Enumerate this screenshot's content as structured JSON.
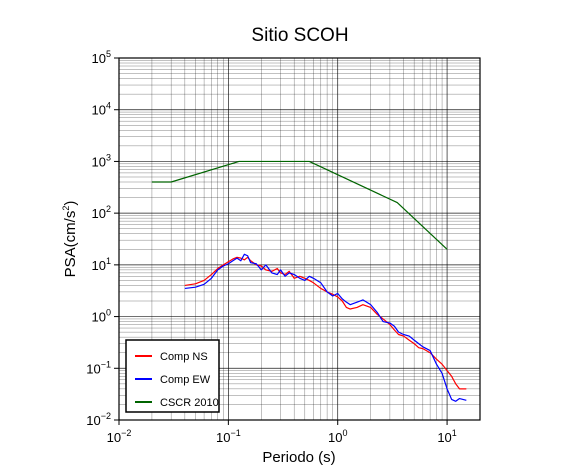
{
  "chart_data": {
    "type": "line",
    "title": "Sitio SCOH",
    "xlabel": "Periodo (s)",
    "ylabel_base": "PSA(cm/s",
    "ylabel_sup": "2",
    "ylabel_end": ")",
    "xscale": "log",
    "yscale": "log",
    "xlim": [
      0.01,
      20
    ],
    "ylim": [
      0.01,
      100000
    ],
    "x_ticks": [
      {
        "base": "10",
        "exp": "−2",
        "value": 0.01
      },
      {
        "base": "10",
        "exp": "−1",
        "value": 0.1
      },
      {
        "base": "10",
        "exp": "0",
        "value": 1
      },
      {
        "base": "10",
        "exp": "1",
        "value": 10
      }
    ],
    "y_ticks": [
      {
        "base": "10",
        "exp": "−2",
        "value": 0.01
      },
      {
        "base": "10",
        "exp": "−1",
        "value": 0.1
      },
      {
        "base": "10",
        "exp": "0",
        "value": 1
      },
      {
        "base": "10",
        "exp": "1",
        "value": 10
      },
      {
        "base": "10",
        "exp": "2",
        "value": 100
      },
      {
        "base": "10",
        "exp": "3",
        "value": 1000
      },
      {
        "base": "10",
        "exp": "4",
        "value": 10000
      },
      {
        "base": "10",
        "exp": "5",
        "value": 100000
      }
    ],
    "grid": true,
    "legend_position": "bottom-left",
    "series": [
      {
        "name": "Comp NS",
        "color": "#ff0000",
        "points": [
          [
            0.04,
            4.0
          ],
          [
            0.05,
            4.3
          ],
          [
            0.06,
            5.0
          ],
          [
            0.07,
            6.5
          ],
          [
            0.08,
            8.5
          ],
          [
            0.09,
            10.0
          ],
          [
            0.1,
            11.5
          ],
          [
            0.11,
            13.0
          ],
          [
            0.12,
            14.0
          ],
          [
            0.13,
            13.5
          ],
          [
            0.14,
            12.5
          ],
          [
            0.15,
            14.0
          ],
          [
            0.16,
            12.0
          ],
          [
            0.18,
            10.0
          ],
          [
            0.2,
            9.5
          ],
          [
            0.22,
            8.0
          ],
          [
            0.25,
            7.5
          ],
          [
            0.28,
            8.5
          ],
          [
            0.3,
            7.0
          ],
          [
            0.33,
            6.5
          ],
          [
            0.36,
            7.5
          ],
          [
            0.4,
            5.5
          ],
          [
            0.45,
            6.0
          ],
          [
            0.5,
            5.5
          ],
          [
            0.55,
            5.0
          ],
          [
            0.6,
            4.5
          ],
          [
            0.7,
            3.5
          ],
          [
            0.8,
            3.0
          ],
          [
            0.9,
            2.7
          ],
          [
            1.0,
            2.4
          ],
          [
            1.1,
            2.0
          ],
          [
            1.2,
            1.5
          ],
          [
            1.3,
            1.4
          ],
          [
            1.5,
            1.5
          ],
          [
            1.7,
            1.7
          ],
          [
            2.0,
            1.5
          ],
          [
            2.3,
            1.1
          ],
          [
            2.6,
            0.9
          ],
          [
            3.0,
            0.7
          ],
          [
            3.3,
            0.55
          ],
          [
            3.6,
            0.45
          ],
          [
            4.0,
            0.42
          ],
          [
            4.5,
            0.35
          ],
          [
            5.0,
            0.3
          ],
          [
            5.5,
            0.25
          ],
          [
            6.0,
            0.24
          ],
          [
            7.0,
            0.2
          ],
          [
            8.0,
            0.15
          ],
          [
            9.0,
            0.12
          ],
          [
            10.0,
            0.09
          ],
          [
            11.0,
            0.07
          ],
          [
            12.0,
            0.05
          ],
          [
            13.0,
            0.04
          ],
          [
            15.0,
            0.04
          ]
        ]
      },
      {
        "name": "Comp EW",
        "color": "#0000ff",
        "points": [
          [
            0.04,
            3.5
          ],
          [
            0.05,
            3.7
          ],
          [
            0.06,
            4.2
          ],
          [
            0.07,
            5.5
          ],
          [
            0.08,
            8.0
          ],
          [
            0.09,
            9.5
          ],
          [
            0.1,
            10.5
          ],
          [
            0.11,
            12.0
          ],
          [
            0.12,
            13.5
          ],
          [
            0.13,
            12.0
          ],
          [
            0.14,
            16.0
          ],
          [
            0.15,
            15.0
          ],
          [
            0.16,
            11.0
          ],
          [
            0.18,
            10.5
          ],
          [
            0.2,
            8.0
          ],
          [
            0.22,
            10.0
          ],
          [
            0.25,
            7.0
          ],
          [
            0.28,
            6.5
          ],
          [
            0.3,
            8.0
          ],
          [
            0.33,
            6.0
          ],
          [
            0.36,
            7.0
          ],
          [
            0.4,
            6.5
          ],
          [
            0.45,
            5.5
          ],
          [
            0.5,
            5.0
          ],
          [
            0.55,
            6.0
          ],
          [
            0.6,
            5.5
          ],
          [
            0.7,
            4.5
          ],
          [
            0.8,
            3.0
          ],
          [
            0.9,
            2.5
          ],
          [
            1.0,
            2.8
          ],
          [
            1.1,
            2.2
          ],
          [
            1.2,
            1.9
          ],
          [
            1.3,
            1.7
          ],
          [
            1.5,
            1.9
          ],
          [
            1.7,
            2.1
          ],
          [
            2.0,
            1.7
          ],
          [
            2.3,
            1.2
          ],
          [
            2.6,
            0.8
          ],
          [
            3.0,
            0.75
          ],
          [
            3.3,
            0.65
          ],
          [
            3.6,
            0.5
          ],
          [
            4.0,
            0.45
          ],
          [
            4.5,
            0.42
          ],
          [
            5.0,
            0.35
          ],
          [
            5.5,
            0.3
          ],
          [
            6.0,
            0.26
          ],
          [
            7.0,
            0.22
          ],
          [
            8.0,
            0.12
          ],
          [
            9.0,
            0.08
          ],
          [
            10.0,
            0.04
          ],
          [
            11.0,
            0.025
          ],
          [
            12.0,
            0.023
          ],
          [
            13.0,
            0.026
          ],
          [
            15.0,
            0.024
          ]
        ]
      },
      {
        "name": "CSCR 2010",
        "color": "#006400",
        "points": [
          [
            0.02,
            400
          ],
          [
            0.03,
            400
          ],
          [
            0.125,
            1000
          ],
          [
            0.55,
            1000
          ],
          [
            3.5,
            160
          ],
          [
            10.0,
            20
          ]
        ]
      }
    ]
  }
}
